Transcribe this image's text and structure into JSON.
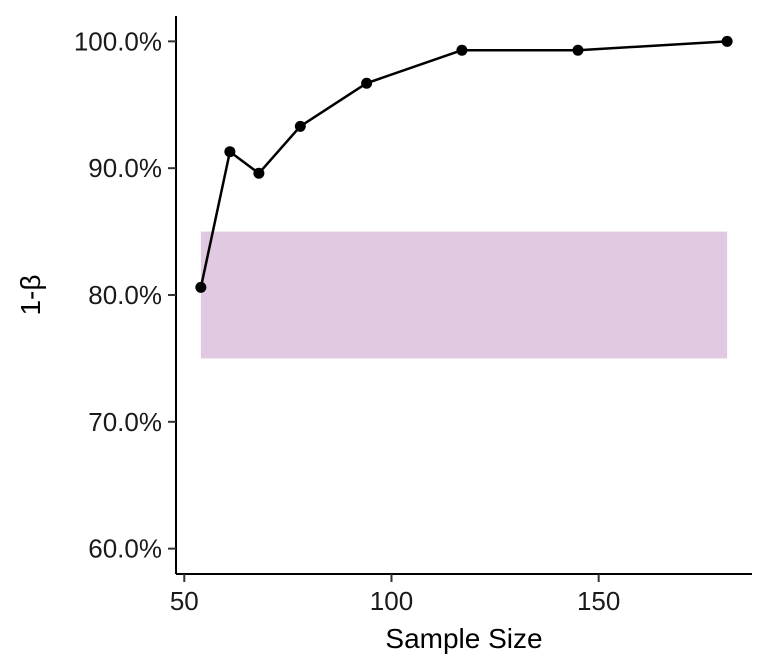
{
  "chart_data": {
    "type": "line",
    "title": "",
    "xlabel": "Sample Size",
    "ylabel": "1-β",
    "xlim": [
      48,
      187
    ],
    "ylim": [
      0.58,
      1.02
    ],
    "x_ticks": [
      50,
      100,
      150
    ],
    "y_ticks": [
      0.6,
      0.7,
      0.8,
      0.9,
      1.0
    ],
    "y_tick_labels": [
      "60.0%",
      "70.0%",
      "80.0%",
      "90.0%",
      "100.0%"
    ],
    "x_tick_labels": [
      "50",
      "100",
      "150"
    ],
    "grid": false,
    "legend": "none",
    "band": {
      "x_range": [
        54,
        181
      ],
      "y_range": [
        0.75,
        0.85
      ],
      "color": "#e1c9e1"
    },
    "series": [
      {
        "color": "#000000",
        "x": [
          54,
          61,
          68,
          78,
          94,
          117,
          145,
          181
        ],
        "y": [
          0.806,
          0.913,
          0.896,
          0.933,
          0.967,
          0.993,
          0.993,
          1.0
        ]
      }
    ]
  }
}
